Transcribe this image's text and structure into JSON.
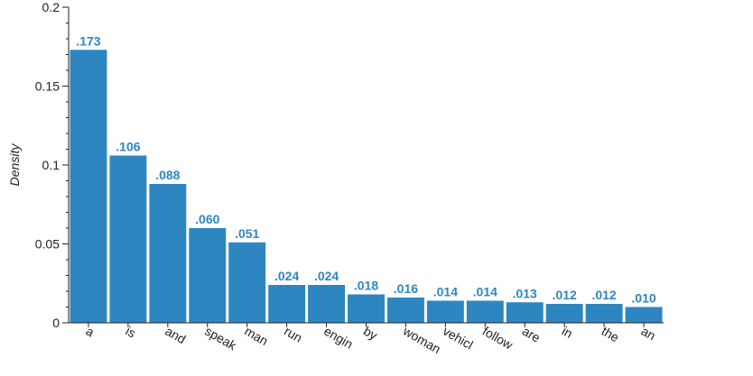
{
  "chart_data": {
    "type": "bar",
    "categories": [
      "a",
      "is",
      "and",
      "speak",
      "man",
      "run",
      "engin",
      "by",
      "woman",
      "vehicl",
      "follow",
      "are",
      "in",
      "the",
      "an"
    ],
    "values": [
      0.173,
      0.106,
      0.088,
      0.06,
      0.051,
      0.024,
      0.024,
      0.018,
      0.016,
      0.014,
      0.014,
      0.013,
      0.012,
      0.012,
      0.01
    ],
    "data_labels": [
      ".173",
      ".106",
      ".088",
      ".060",
      ".051",
      ".024",
      ".024",
      ".018",
      ".016",
      ".014",
      ".014",
      ".013",
      ".012",
      ".012",
      ".010"
    ],
    "title": "",
    "xlabel": "",
    "ylabel": "Density",
    "ylim": [
      0,
      0.2
    ],
    "yticks": [
      0,
      0.05,
      0.1,
      0.15,
      0.2
    ],
    "ytick_labels": [
      "0",
      "0.05",
      "0.1",
      "0.15",
      "0.2"
    ],
    "minor_ytick_step": 0.01,
    "grid": false,
    "legend": "none",
    "bar_color": "#2e86c1",
    "label_color": "#2e86c1"
  }
}
